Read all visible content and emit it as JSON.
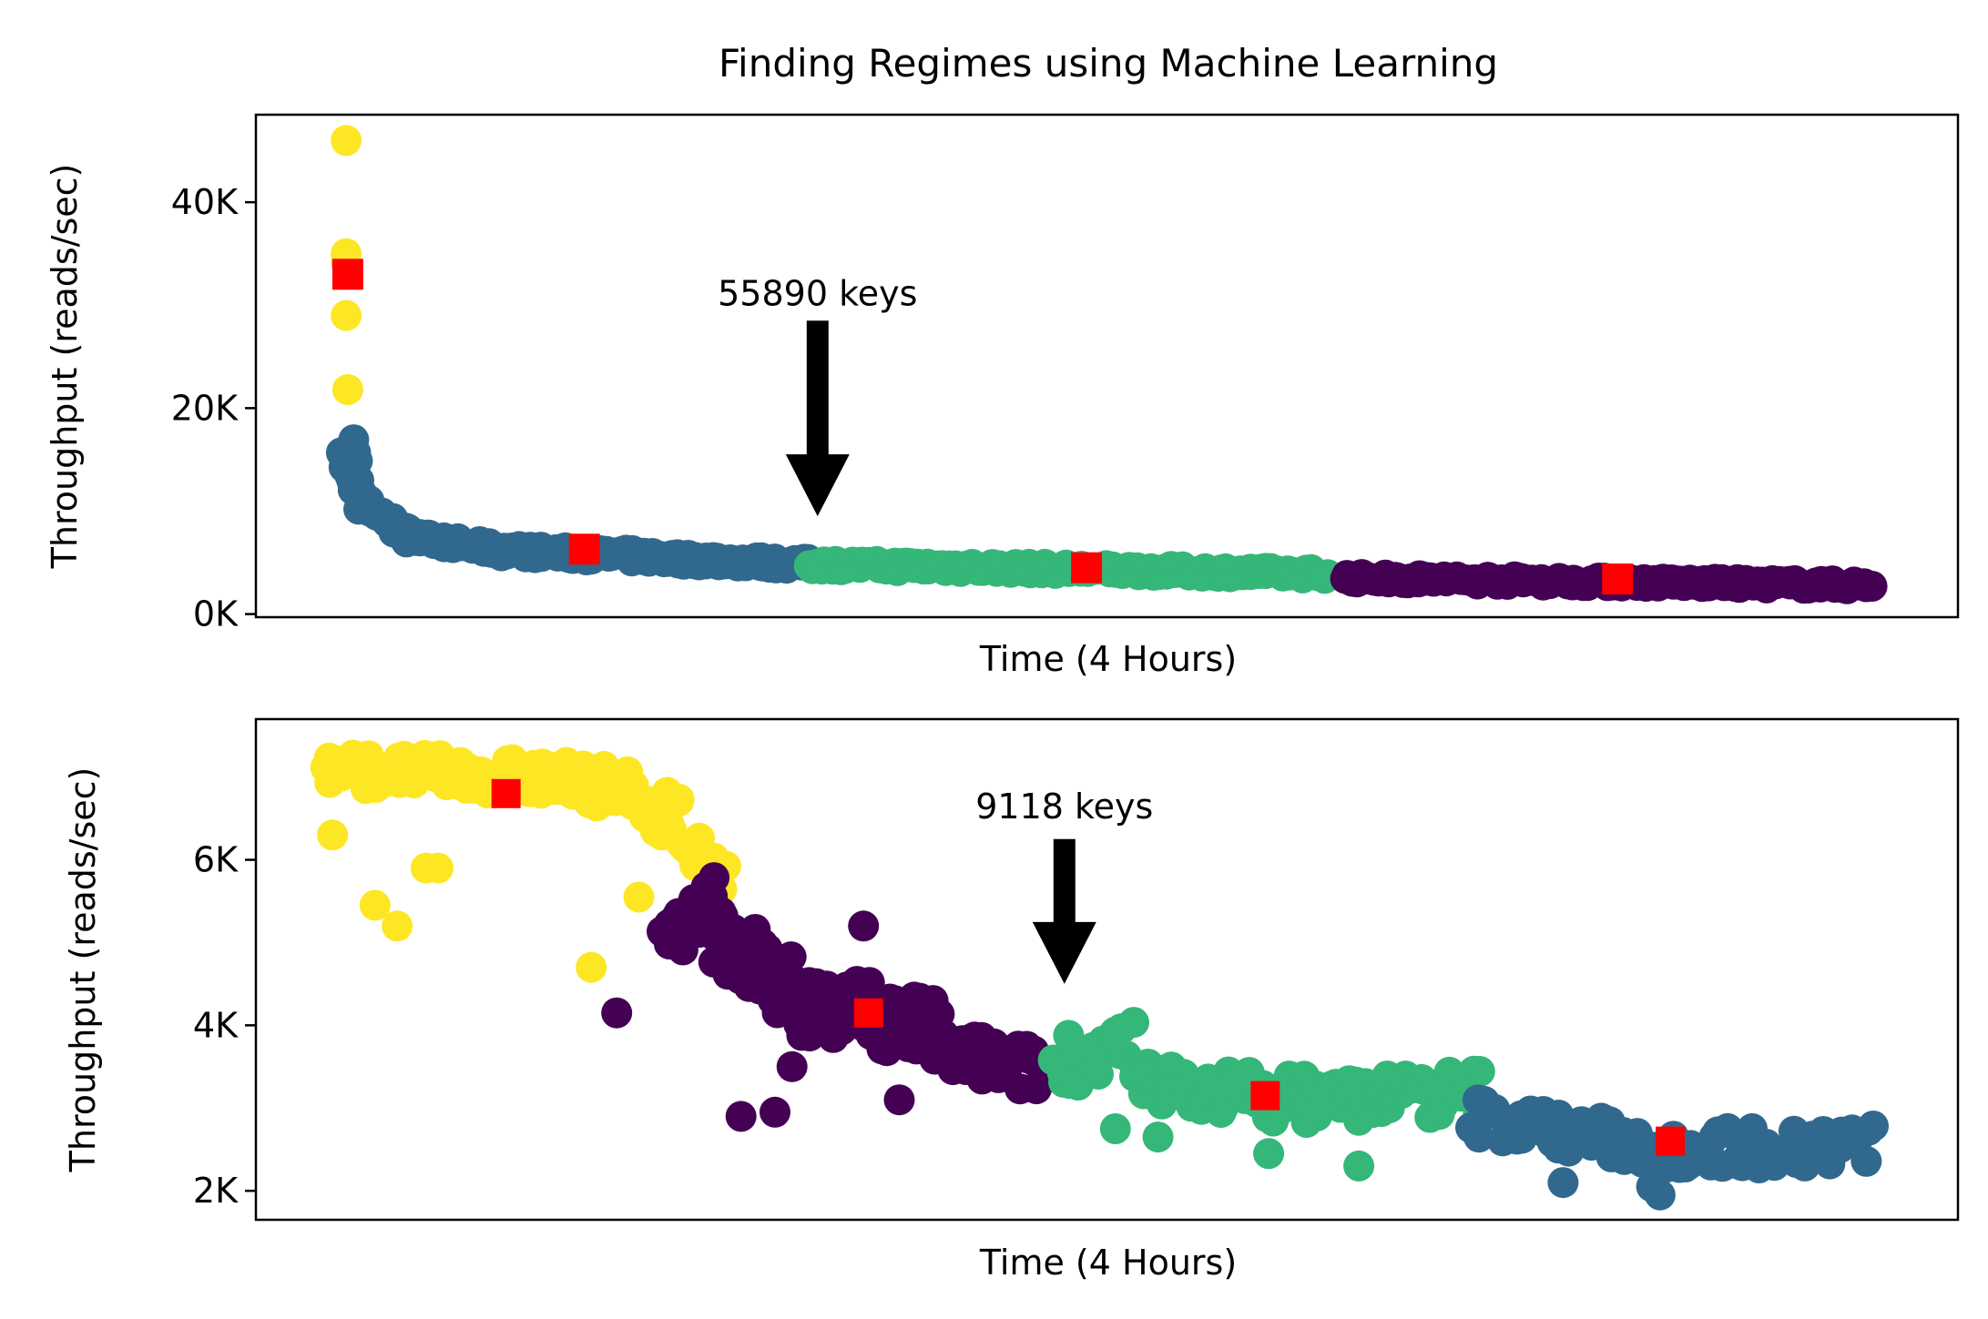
{
  "colors": {
    "cluster_yellow": "#fde725",
    "cluster_blue": "#31688e",
    "cluster_green": "#35b779",
    "cluster_purple": "#440154",
    "centroid": "#ff0000",
    "arrow": "#000000"
  },
  "chart_data": [
    {
      "type": "scatter",
      "title": "Finding Regimes using Machine Learning",
      "xlabel": "Time (4 Hours)",
      "ylabel": "Throughput (reads/sec)",
      "ylim": [
        -300,
        48500
      ],
      "xlim": [
        0,
        100
      ],
      "xticks": [],
      "yticks": [
        0,
        20000,
        40000
      ],
      "ytick_labels": [
        "0K",
        "20K",
        "40K"
      ],
      "grid": false,
      "annotation": {
        "text": "55890 keys",
        "x": 33,
        "y_text": 30000,
        "y_arrow_start": 28500,
        "y_arrow_end": 9500
      },
      "series": [
        {
          "color": "#fde725",
          "points": [
            [
              5.3,
              46000
            ],
            [
              5.3,
              35000
            ],
            [
              5.3,
              29000
            ],
            [
              5.4,
              21800
            ],
            [
              5.3,
              34200
            ]
          ]
        },
        {
          "color": "#31688e",
          "segments": [
            {
              "from": [
                5.2,
                15000
              ],
              "to": [
                5.7,
                12500
              ],
              "spread": 800,
              "n": 10
            },
            {
              "from": [
                5.6,
                16500
              ],
              "to": [
                6.2,
                10500
              ],
              "spread": 700,
              "n": 12
            },
            {
              "from": [
                6.2,
                11000
              ],
              "to": [
                9,
                7500
              ],
              "spread": 600,
              "n": 30
            },
            {
              "from": [
                9,
                7500
              ],
              "to": [
                14,
                6300
              ],
              "spread": 500,
              "n": 40
            },
            {
              "from": [
                14,
                6200
              ],
              "to": [
                24,
                5500
              ],
              "spread": 550,
              "n": 60
            },
            {
              "from": [
                24,
                5400
              ],
              "to": [
                33,
                4800
              ],
              "spread": 500,
              "n": 55
            }
          ]
        },
        {
          "color": "#35b779",
          "segments": [
            {
              "from": [
                32.5,
                4800
              ],
              "to": [
                50,
                4300
              ],
              "spread": 450,
              "n": 100
            },
            {
              "from": [
                50,
                4300
              ],
              "to": [
                63,
                3900
              ],
              "spread": 450,
              "n": 80
            }
          ]
        },
        {
          "color": "#440154",
          "segments": [
            {
              "from": [
                64,
                3500
              ],
              "to": [
                80,
                3100
              ],
              "spread": 400,
              "n": 90
            },
            {
              "from": [
                80,
                3100
              ],
              "to": [
                95,
                2800
              ],
              "spread": 400,
              "n": 90
            }
          ]
        }
      ],
      "centroids": [
        [
          5.4,
          33000
        ],
        [
          19.3,
          6300
        ],
        [
          48.8,
          4500
        ],
        [
          80,
          3400
        ]
      ]
    },
    {
      "type": "scatter",
      "title": "",
      "xlabel": "Time (4 Hours)",
      "ylabel": "Throughput (reads/sec)",
      "ylim": [
        1650,
        7700
      ],
      "xlim": [
        0,
        100
      ],
      "xticks": [],
      "yticks": [
        2000,
        4000,
        6000
      ],
      "ytick_labels": [
        "2K",
        "4K",
        "6K"
      ],
      "grid": false,
      "annotation": {
        "text": "9118 keys",
        "x": 47.5,
        "y_text": 6500,
        "y_arrow_start": 6250,
        "y_arrow_end": 4500
      },
      "series": [
        {
          "color": "#fde725",
          "segments": [
            {
              "from": [
                4,
                7100
              ],
              "to": [
                16,
                7000
              ],
              "spread": 220,
              "n": 60
            },
            {
              "from": [
                16,
                7000
              ],
              "to": [
                20,
                6900
              ],
              "spread": 250,
              "n": 20
            },
            {
              "from": [
                20,
                6900
              ],
              "to": [
                25,
                6500
              ],
              "spread": 300,
              "n": 25
            },
            {
              "from": [
                25,
                6300
              ],
              "to": [
                27.5,
                5700
              ],
              "spread": 250,
              "n": 12
            }
          ],
          "points": [
            [
              4.5,
              6300
            ],
            [
              7,
              5450
            ],
            [
              8.3,
              5200
            ],
            [
              10,
              5900
            ],
            [
              10.7,
              5900
            ],
            [
              19.7,
              4700
            ],
            [
              22.5,
              5550
            ]
          ]
        },
        {
          "color": "#440154",
          "segments": [
            {
              "from": [
                24,
                5000
              ],
              "to": [
                27,
                5500
              ],
              "spread": 300,
              "n": 18
            },
            {
              "from": [
                27,
                5200
              ],
              "to": [
                33,
                4100
              ],
              "spread": 450,
              "n": 50
            },
            {
              "from": [
                33,
                4300
              ],
              "to": [
                40,
                3900
              ],
              "spread": 400,
              "n": 50
            },
            {
              "from": [
                40,
                3700
              ],
              "to": [
                47,
                3400
              ],
              "spread": 300,
              "n": 40
            }
          ],
          "points": [
            [
              21.2,
              4150
            ],
            [
              28.5,
              2900
            ],
            [
              30.5,
              2950
            ],
            [
              31.5,
              3500
            ],
            [
              35.5,
              4500
            ],
            [
              35.7,
              5200
            ],
            [
              37.8,
              3100
            ]
          ]
        },
        {
          "color": "#35b779",
          "segments": [
            {
              "from": [
                47,
                3600
              ],
              "to": [
                51.5,
                3700
              ],
              "spread": 350,
              "n": 20
            },
            {
              "from": [
                51.5,
                3300
              ],
              "to": [
                62,
                3100
              ],
              "spread": 300,
              "n": 40
            },
            {
              "from": [
                62,
                3100
              ],
              "to": [
                72,
                3200
              ],
              "spread": 300,
              "n": 40
            }
          ],
          "points": [
            [
              50.5,
              2750
            ],
            [
              53,
              2650
            ],
            [
              59.5,
              2450
            ],
            [
              64.8,
              2300
            ]
          ]
        },
        {
          "color": "#31688e",
          "segments": [
            {
              "from": [
                71.5,
                2900
              ],
              "to": [
                83,
                2500
              ],
              "spread": 250,
              "n": 50
            },
            {
              "from": [
                83,
                2500
              ],
              "to": [
                95,
                2550
              ],
              "spread": 260,
              "n": 50
            }
          ],
          "points": [
            [
              76.8,
              2100
            ],
            [
              82,
              2050
            ],
            [
              82.5,
              1950
            ],
            [
              91,
              2300
            ]
          ]
        }
      ],
      "centroids": [
        [
          14.7,
          6800
        ],
        [
          36,
          4150
        ],
        [
          59.3,
          3150
        ],
        [
          83.1,
          2600
        ]
      ]
    }
  ]
}
